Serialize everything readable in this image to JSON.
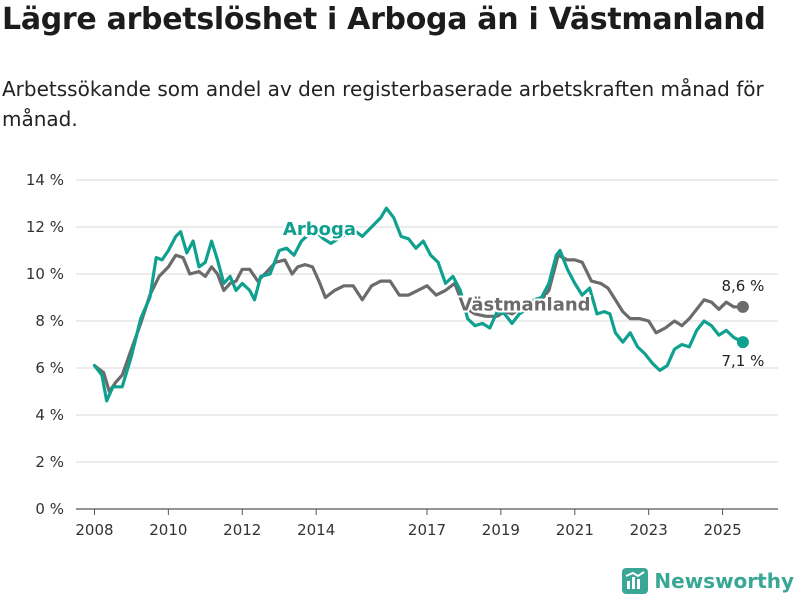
{
  "title": "Lägre arbetslöshet i Arboga än i Västmanland",
  "subtitle": "Arbetssökande som andel av den registerbaserade arbetskraften månad för månad.",
  "brand": {
    "name": "Newsworthy",
    "icon": "newsworthy-logo-icon"
  },
  "colors": {
    "arboga": "#0fa08f",
    "vastmanland": "#6b6b6b",
    "grid": "#d9d9d9"
  },
  "chart_data": {
    "type": "line",
    "title": "Lägre arbetslöshet i Arboga än i Västmanland",
    "xlabel": "",
    "ylabel": "",
    "xlim": [
      2007.5,
      2026.5
    ],
    "ylim": [
      0,
      14
    ],
    "y_ticks": [
      0,
      2,
      4,
      6,
      8,
      10,
      12,
      14
    ],
    "y_tick_labels": [
      "0 %",
      "2 %",
      "4 %",
      "6 %",
      "8 %",
      "10 %",
      "12 %",
      "14 %"
    ],
    "x_ticks": [
      2008,
      2010,
      2012,
      2014,
      2017,
      2019,
      2021,
      2023,
      2025
    ],
    "x_tick_labels": [
      "2008",
      "2010",
      "2012",
      "2014",
      "2017",
      "2019",
      "2021",
      "2023",
      "2025"
    ],
    "grid": true,
    "series": [
      {
        "name": "Arboga",
        "label": "Arboga",
        "end_label": "7,1 %",
        "end_value": 7.1,
        "points": [
          [
            2008.0,
            6.1
          ],
          [
            2008.2,
            5.7
          ],
          [
            2008.33,
            4.6
          ],
          [
            2008.5,
            5.2
          ],
          [
            2008.75,
            5.2
          ],
          [
            2009.0,
            6.5
          ],
          [
            2009.25,
            8.1
          ],
          [
            2009.5,
            9.0
          ],
          [
            2009.67,
            10.7
          ],
          [
            2009.83,
            10.6
          ],
          [
            2010.0,
            11.0
          ],
          [
            2010.2,
            11.6
          ],
          [
            2010.33,
            11.8
          ],
          [
            2010.5,
            10.9
          ],
          [
            2010.67,
            11.4
          ],
          [
            2010.83,
            10.3
          ],
          [
            2011.0,
            10.5
          ],
          [
            2011.17,
            11.4
          ],
          [
            2011.33,
            10.6
          ],
          [
            2011.5,
            9.6
          ],
          [
            2011.67,
            9.9
          ],
          [
            2011.83,
            9.3
          ],
          [
            2012.0,
            9.6
          ],
          [
            2012.2,
            9.3
          ],
          [
            2012.33,
            8.9
          ],
          [
            2012.5,
            9.9
          ],
          [
            2012.75,
            10.0
          ],
          [
            2013.0,
            11.0
          ],
          [
            2013.2,
            11.1
          ],
          [
            2013.4,
            10.8
          ],
          [
            2013.6,
            11.4
          ],
          [
            2013.8,
            11.7
          ],
          [
            2014.0,
            11.8
          ],
          [
            2014.2,
            11.5
          ],
          [
            2014.4,
            11.3
          ],
          [
            2014.6,
            11.5
          ],
          [
            2014.8,
            11.7
          ],
          [
            2015.0,
            11.9
          ],
          [
            2015.25,
            11.6
          ],
          [
            2015.5,
            12.0
          ],
          [
            2015.75,
            12.4
          ],
          [
            2015.9,
            12.8
          ],
          [
            2016.1,
            12.4
          ],
          [
            2016.3,
            11.6
          ],
          [
            2016.5,
            11.5
          ],
          [
            2016.7,
            11.1
          ],
          [
            2016.9,
            11.4
          ],
          [
            2017.1,
            10.8
          ],
          [
            2017.3,
            10.5
          ],
          [
            2017.5,
            9.6
          ],
          [
            2017.7,
            9.9
          ],
          [
            2017.9,
            9.3
          ],
          [
            2018.1,
            8.1
          ],
          [
            2018.3,
            7.8
          ],
          [
            2018.5,
            7.9
          ],
          [
            2018.7,
            7.7
          ],
          [
            2018.9,
            8.4
          ],
          [
            2019.1,
            8.3
          ],
          [
            2019.3,
            7.9
          ],
          [
            2019.5,
            8.3
          ],
          [
            2019.7,
            8.5
          ],
          [
            2019.9,
            8.9
          ],
          [
            2020.1,
            9.0
          ],
          [
            2020.3,
            9.6
          ],
          [
            2020.5,
            10.8
          ],
          [
            2020.6,
            11.0
          ],
          [
            2020.8,
            10.2
          ],
          [
            2021.0,
            9.6
          ],
          [
            2021.2,
            9.1
          ],
          [
            2021.4,
            9.4
          ],
          [
            2021.6,
            8.3
          ],
          [
            2021.8,
            8.4
          ],
          [
            2021.95,
            8.3
          ],
          [
            2022.1,
            7.5
          ],
          [
            2022.3,
            7.1
          ],
          [
            2022.5,
            7.5
          ],
          [
            2022.7,
            6.9
          ],
          [
            2022.9,
            6.6
          ],
          [
            2023.1,
            6.2
          ],
          [
            2023.3,
            5.9
          ],
          [
            2023.5,
            6.1
          ],
          [
            2023.7,
            6.8
          ],
          [
            2023.9,
            7.0
          ],
          [
            2024.1,
            6.9
          ],
          [
            2024.3,
            7.6
          ],
          [
            2024.5,
            8.0
          ],
          [
            2024.7,
            7.8
          ],
          [
            2024.9,
            7.4
          ],
          [
            2025.1,
            7.6
          ],
          [
            2025.3,
            7.3
          ],
          [
            2025.55,
            7.1
          ]
        ]
      },
      {
        "name": "Västmanland",
        "label": "Västmanland",
        "end_label": "8,6 %",
        "end_value": 8.6,
        "points": [
          [
            2008.0,
            6.1
          ],
          [
            2008.25,
            5.8
          ],
          [
            2008.4,
            5.0
          ],
          [
            2008.58,
            5.4
          ],
          [
            2008.75,
            5.7
          ],
          [
            2009.0,
            6.8
          ],
          [
            2009.25,
            7.9
          ],
          [
            2009.5,
            9.1
          ],
          [
            2009.75,
            9.9
          ],
          [
            2010.0,
            10.3
          ],
          [
            2010.2,
            10.8
          ],
          [
            2010.4,
            10.7
          ],
          [
            2010.58,
            10.0
          ],
          [
            2010.83,
            10.1
          ],
          [
            2011.0,
            9.9
          ],
          [
            2011.17,
            10.3
          ],
          [
            2011.33,
            10.0
          ],
          [
            2011.5,
            9.3
          ],
          [
            2011.67,
            9.6
          ],
          [
            2011.83,
            9.7
          ],
          [
            2012.0,
            10.2
          ],
          [
            2012.2,
            10.2
          ],
          [
            2012.42,
            9.7
          ],
          [
            2012.67,
            10.1
          ],
          [
            2012.9,
            10.5
          ],
          [
            2013.15,
            10.6
          ],
          [
            2013.35,
            10.0
          ],
          [
            2013.5,
            10.3
          ],
          [
            2013.7,
            10.4
          ],
          [
            2013.9,
            10.3
          ],
          [
            2014.1,
            9.6
          ],
          [
            2014.25,
            9.0
          ],
          [
            2014.5,
            9.3
          ],
          [
            2014.75,
            9.5
          ],
          [
            2015.0,
            9.5
          ],
          [
            2015.25,
            8.9
          ],
          [
            2015.5,
            9.5
          ],
          [
            2015.75,
            9.7
          ],
          [
            2016.0,
            9.7
          ],
          [
            2016.25,
            9.1
          ],
          [
            2016.5,
            9.1
          ],
          [
            2016.75,
            9.3
          ],
          [
            2017.0,
            9.5
          ],
          [
            2017.25,
            9.1
          ],
          [
            2017.5,
            9.3
          ],
          [
            2017.75,
            9.6
          ],
          [
            2018.0,
            8.6
          ],
          [
            2018.3,
            8.3
          ],
          [
            2018.6,
            8.2
          ],
          [
            2018.9,
            8.2
          ],
          [
            2019.1,
            8.4
          ],
          [
            2019.3,
            8.3
          ],
          [
            2019.6,
            8.6
          ],
          [
            2019.85,
            8.8
          ],
          [
            2020.1,
            8.9
          ],
          [
            2020.3,
            9.3
          ],
          [
            2020.55,
            10.8
          ],
          [
            2020.8,
            10.6
          ],
          [
            2021.0,
            10.6
          ],
          [
            2021.2,
            10.5
          ],
          [
            2021.45,
            9.7
          ],
          [
            2021.7,
            9.6
          ],
          [
            2021.9,
            9.4
          ],
          [
            2022.1,
            8.9
          ],
          [
            2022.3,
            8.4
          ],
          [
            2022.5,
            8.1
          ],
          [
            2022.75,
            8.1
          ],
          [
            2023.0,
            8.0
          ],
          [
            2023.2,
            7.5
          ],
          [
            2023.45,
            7.7
          ],
          [
            2023.7,
            8.0
          ],
          [
            2023.9,
            7.8
          ],
          [
            2024.1,
            8.1
          ],
          [
            2024.3,
            8.5
          ],
          [
            2024.5,
            8.9
          ],
          [
            2024.7,
            8.8
          ],
          [
            2024.9,
            8.5
          ],
          [
            2025.1,
            8.8
          ],
          [
            2025.3,
            8.6
          ],
          [
            2025.55,
            8.6
          ]
        ]
      }
    ]
  }
}
